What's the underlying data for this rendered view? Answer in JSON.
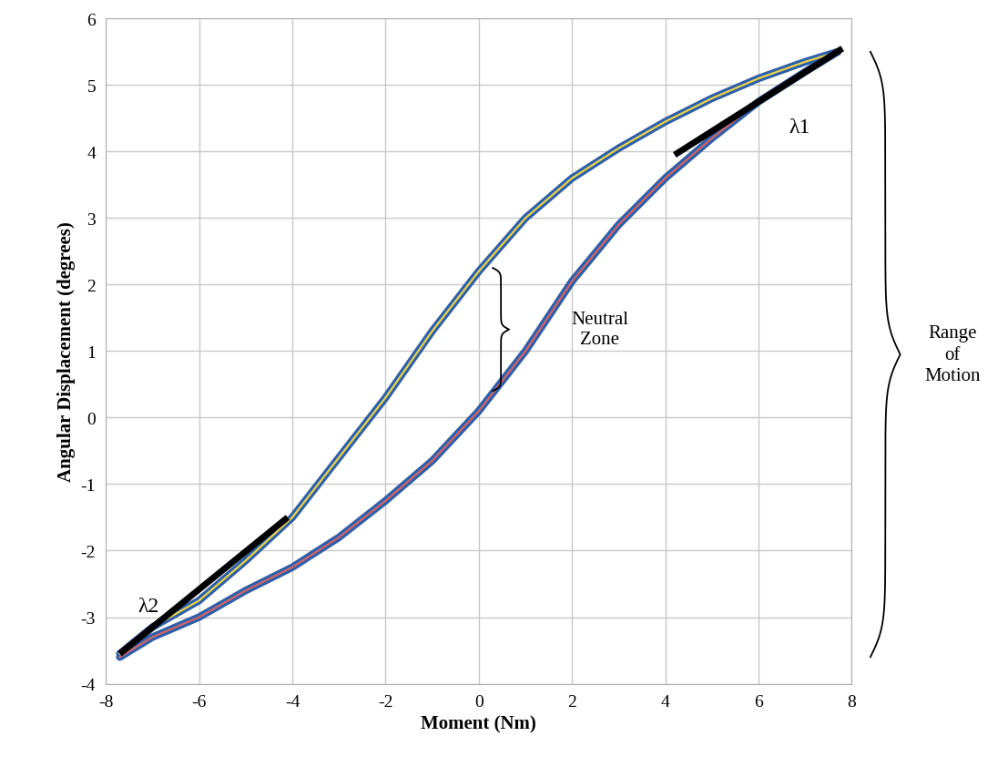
{
  "chart_data": {
    "type": "line",
    "xlabel": "Moment (Nm)",
    "ylabel": "Angular Displacement (degrees)",
    "x": [
      -7.7,
      -7,
      -6,
      -5,
      -4,
      -3,
      -2,
      -1,
      0,
      1,
      2,
      3,
      4,
      5,
      6,
      7,
      7.7
    ],
    "series": [
      {
        "color": "#e8d44d",
        "values": [
          -3.55,
          -3.15,
          -2.75,
          -2.15,
          -1.5,
          -0.6,
          0.3,
          1.3,
          2.2,
          3.0,
          3.6,
          4.05,
          4.45,
          4.8,
          5.1,
          5.35,
          5.5
        ]
      },
      {
        "color": "#d0656a",
        "values": [
          -3.6,
          -3.3,
          -3.0,
          -2.6,
          -2.25,
          -1.8,
          -1.25,
          -0.65,
          0.1,
          1.0,
          2.05,
          2.9,
          3.6,
          4.2,
          4.75,
          5.2,
          5.5
        ]
      }
    ],
    "stiffness_lines": [
      {
        "label": "λ1",
        "x": [
          4.2,
          7.8
        ],
        "y": [
          3.95,
          5.55
        ]
      },
      {
        "label": "λ2",
        "x": [
          -7.7,
          -4.1
        ],
        "y": [
          -3.55,
          -1.5
        ]
      }
    ],
    "neutral_zone": {
      "label": "Neutral\nZone",
      "x": 0.3,
      "y": [
        0.4,
        2.25
      ]
    },
    "range_of_motion": {
      "label": "Range\nof\nMotion",
      "y": [
        -3.6,
        5.5
      ]
    },
    "xlim": [
      -8,
      8
    ],
    "xticks": [
      -8,
      -6,
      -4,
      -2,
      0,
      2,
      4,
      6,
      8
    ],
    "ylim": [
      -4,
      6
    ],
    "yticks": [
      -4,
      -3,
      -2,
      -1,
      0,
      1,
      2,
      3,
      4,
      5,
      6
    ],
    "grid": true
  }
}
